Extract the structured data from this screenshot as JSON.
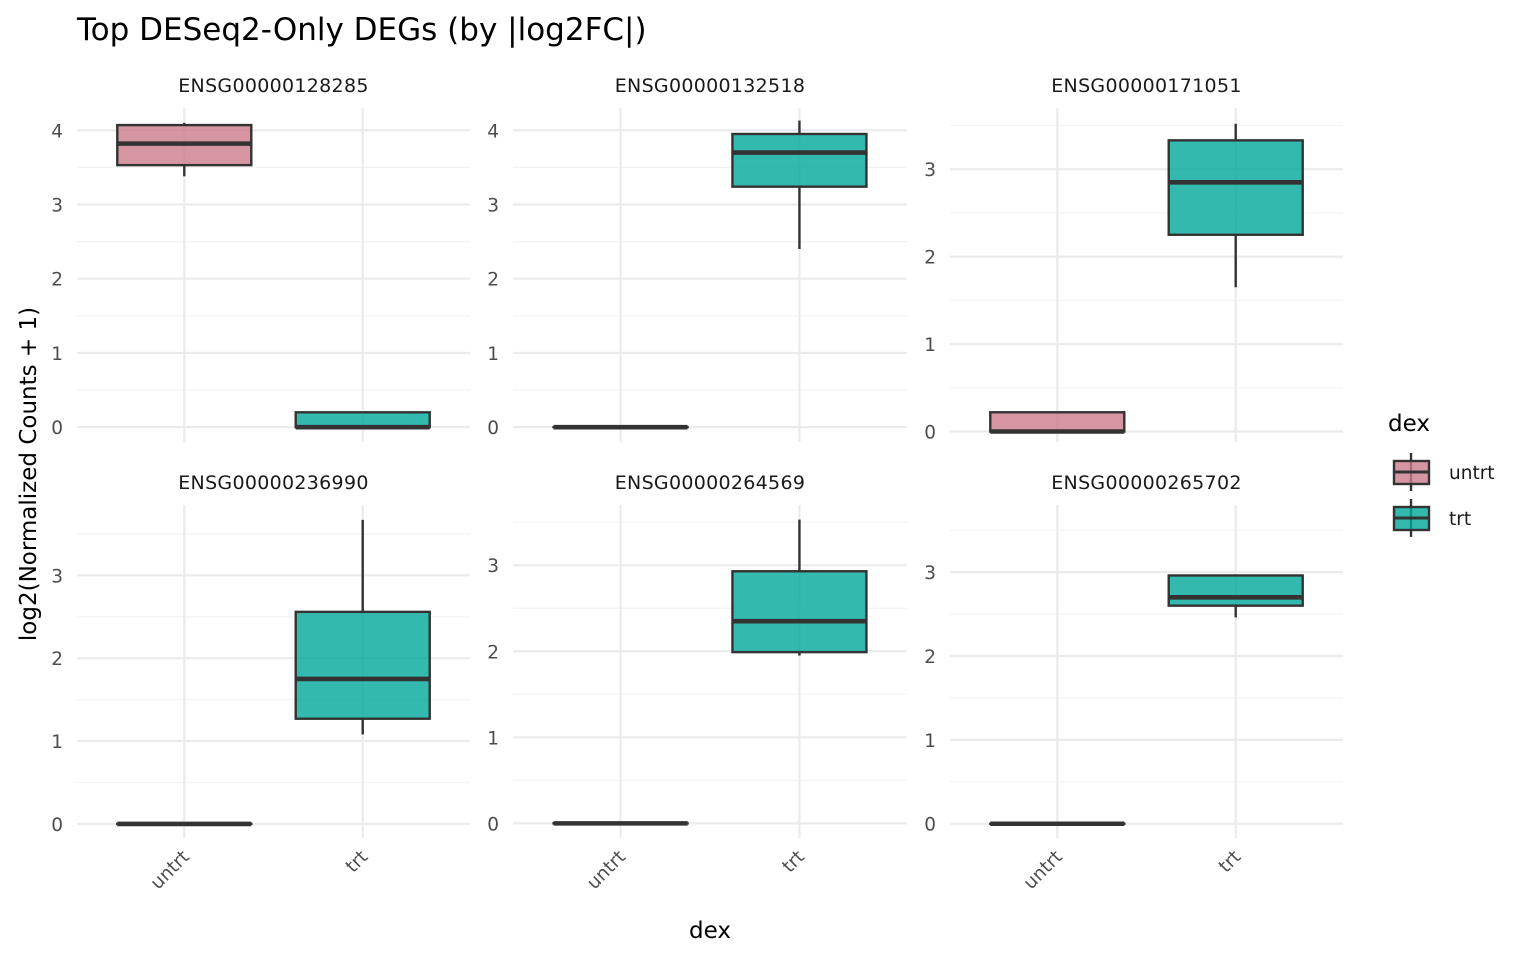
{
  "chart_data": {
    "type": "boxplot",
    "title": "Top DESeq2-Only DEGs (by |log2FC|)",
    "xlabel": "dex",
    "ylabel": "log2(Normalized Counts + 1)",
    "categories": [
      "untrt",
      "trt"
    ],
    "legend": {
      "title": "dex",
      "position": "right",
      "entries": [
        {
          "label": "untrt",
          "color": "#cc7a8b"
        },
        {
          "label": "trt",
          "color": "#00a79a"
        }
      ]
    },
    "fill_alpha": 0.8,
    "grid": true,
    "facets": [
      {
        "label": "ENSG00000128285",
        "ylim": [
          -0.2,
          4.3
        ],
        "yticks": [
          0,
          1,
          2,
          3,
          4
        ],
        "boxes": {
          "untrt": {
            "min": 3.38,
            "q1": 3.53,
            "median": 3.82,
            "q3": 4.07,
            "max": 4.1
          },
          "trt": {
            "min": 0,
            "q1": 0,
            "median": 0,
            "q3": 0.2,
            "max": 0.2
          }
        }
      },
      {
        "label": "ENSG00000132518",
        "ylim": [
          -0.2,
          4.3
        ],
        "yticks": [
          0,
          1,
          2,
          3,
          4
        ],
        "boxes": {
          "untrt": {
            "min": 0,
            "q1": 0,
            "median": 0,
            "q3": 0,
            "max": 0
          },
          "trt": {
            "min": 2.4,
            "q1": 3.24,
            "median": 3.7,
            "q3": 3.95,
            "max": 4.13
          }
        }
      },
      {
        "label": "ENSG00000171051",
        "ylim": [
          -0.12,
          3.7
        ],
        "yticks": [
          0,
          1,
          2,
          3
        ],
        "boxes": {
          "untrt": {
            "min": 0,
            "q1": 0,
            "median": 0,
            "q3": 0.22,
            "max": 0.22
          },
          "trt": {
            "min": 1.65,
            "q1": 2.25,
            "median": 2.85,
            "q3": 3.33,
            "max": 3.52
          }
        }
      },
      {
        "label": "ENSG00000236990",
        "ylim": [
          -0.17,
          3.85
        ],
        "yticks": [
          0,
          1,
          2,
          3
        ],
        "boxes": {
          "untrt": {
            "min": 0,
            "q1": 0,
            "median": 0,
            "q3": 0,
            "max": 0
          },
          "trt": {
            "min": 1.08,
            "q1": 1.27,
            "median": 1.75,
            "q3": 2.56,
            "max": 3.67
          }
        }
      },
      {
        "label": "ENSG00000264569",
        "ylim": [
          -0.17,
          3.7
        ],
        "yticks": [
          0,
          1,
          2,
          3
        ],
        "boxes": {
          "untrt": {
            "min": 0,
            "q1": 0,
            "median": 0,
            "q3": 0,
            "max": 0
          },
          "trt": {
            "min": 1.95,
            "q1": 1.99,
            "median": 2.35,
            "q3": 2.93,
            "max": 3.53
          }
        }
      },
      {
        "label": "ENSG00000265702",
        "ylim": [
          -0.17,
          3.8
        ],
        "yticks": [
          0,
          1,
          2,
          3
        ],
        "boxes": {
          "untrt": {
            "min": 0,
            "q1": 0,
            "median": 0,
            "q3": 0,
            "max": 0
          },
          "trt": {
            "min": 2.46,
            "q1": 2.6,
            "median": 2.7,
            "q3": 2.96,
            "max": 2.96
          }
        }
      }
    ]
  }
}
